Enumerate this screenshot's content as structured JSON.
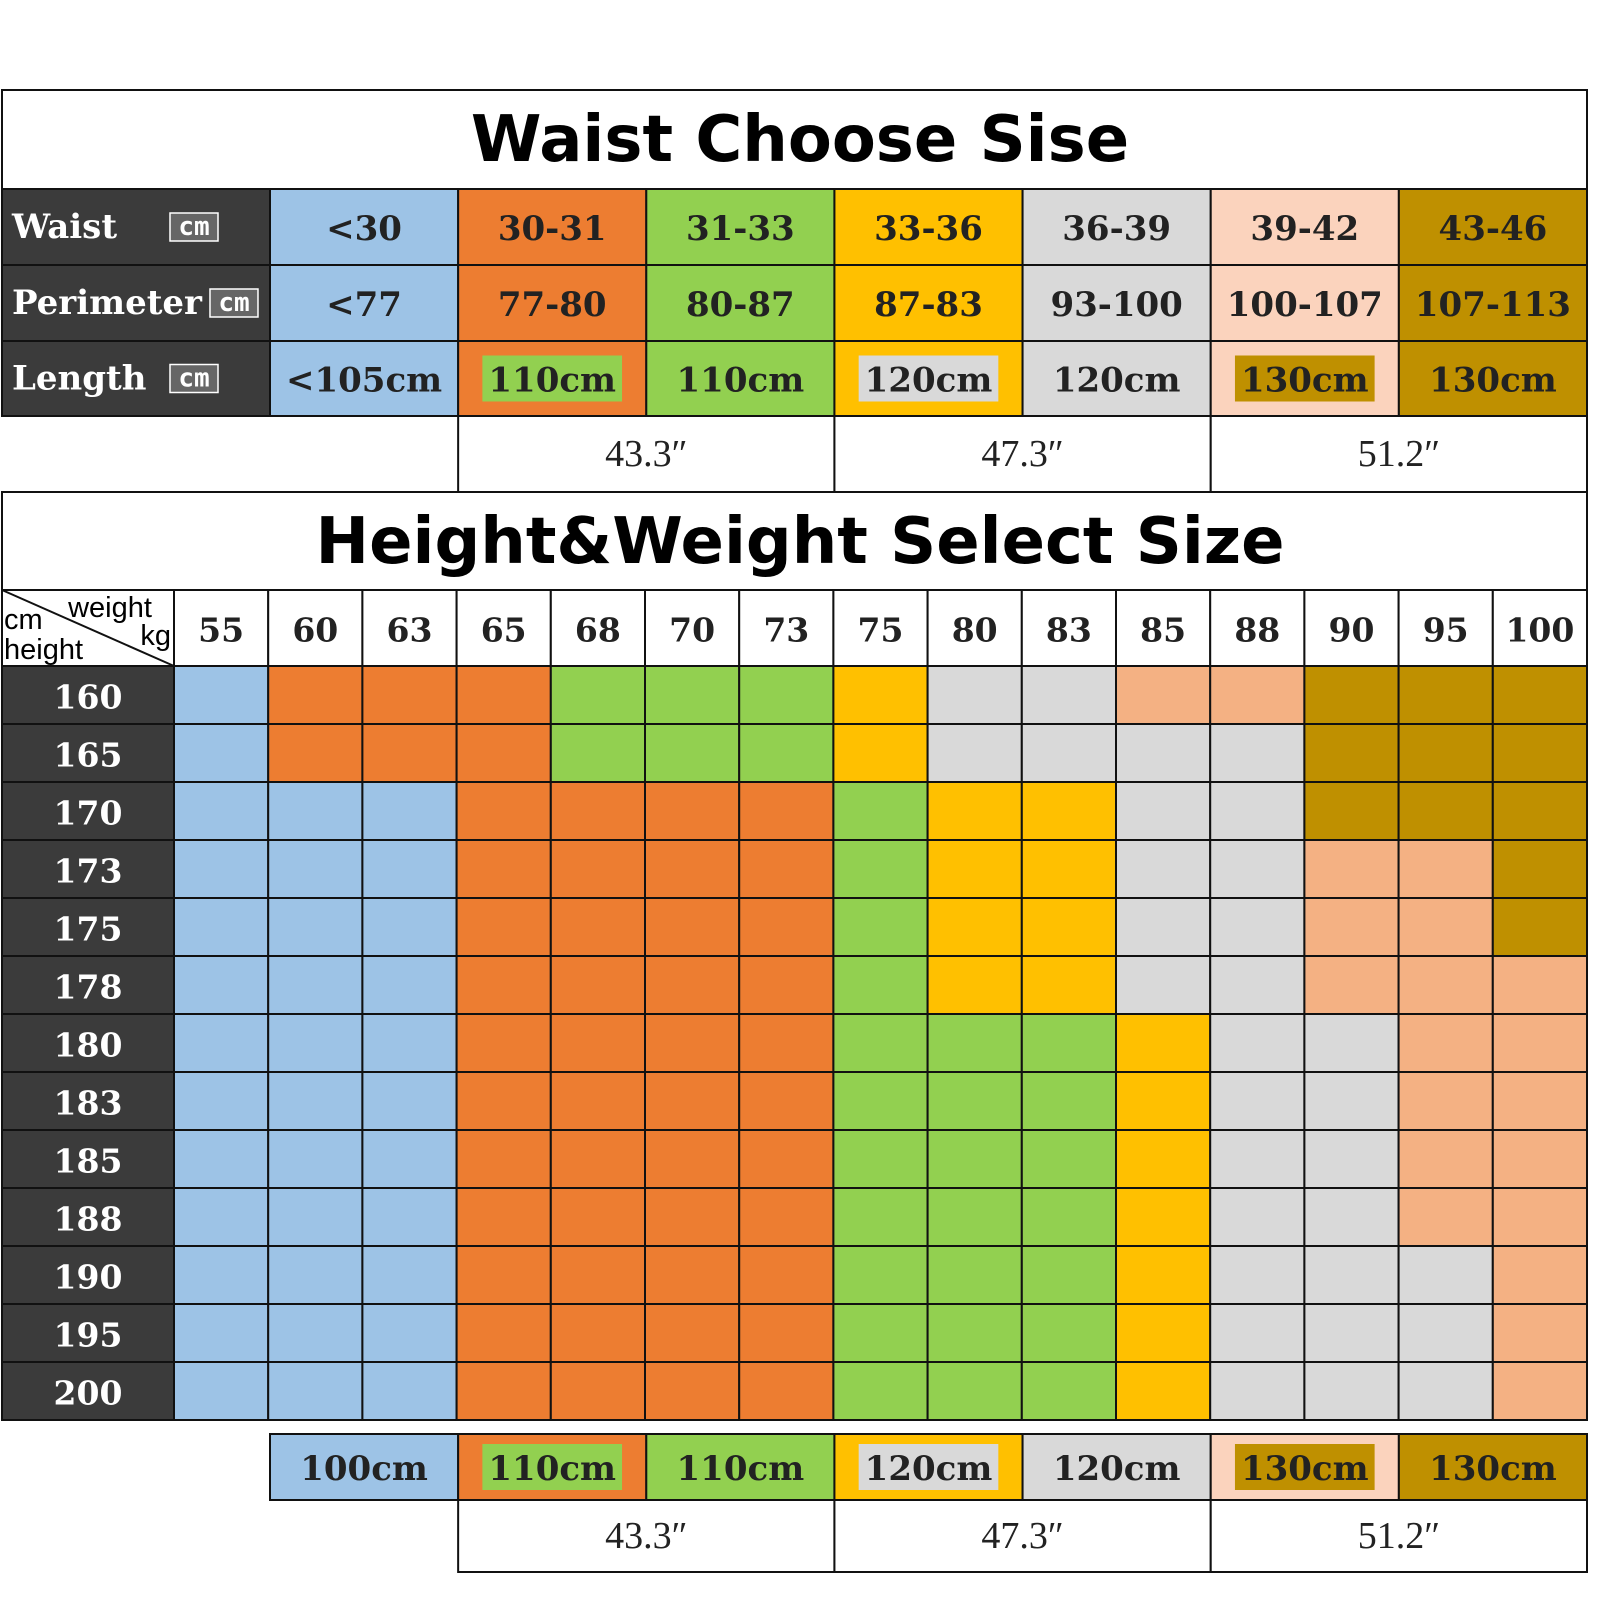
{
  "waist_table": {
    "title": "Waist Choose Sise",
    "column_colors": [
      "#9dc3e6",
      "#ed7d31",
      "#92d050",
      "#ffc000",
      "#d9d9d9",
      "#fbd3bd",
      "#bf9000"
    ],
    "rows": [
      {
        "label": "Waist",
        "unit": "cm",
        "cells": [
          "<30",
          "30-31",
          "31-33",
          "33-36",
          "36-39",
          "39-42",
          "43-46"
        ]
      },
      {
        "label": "Perimeter",
        "unit": "cm",
        "cells": [
          "<77",
          "77-80",
          "80-87",
          "87-83",
          "93-100",
          "100-107",
          "107-113"
        ]
      }
    ],
    "length_row": {
      "label": "Length",
      "unit": "cm",
      "cells": [
        {
          "text": "<105cm"
        },
        {
          "text": "110cm",
          "highlight": "#92d050"
        },
        {
          "text": "110cm"
        },
        {
          "text": "120cm",
          "highlight": "#d9d9d9"
        },
        {
          "text": "120cm"
        },
        {
          "text": "130cm",
          "highlight": "#bf9000"
        },
        {
          "text": "130cm"
        }
      ]
    },
    "inches": [
      "43.3″",
      "47.3″",
      "51.2″"
    ]
  },
  "size_grid": {
    "title": "Height&Weight Select Size",
    "corner": {
      "top_left": "cm",
      "top": "weight",
      "right": "kg",
      "bottom": "height"
    },
    "palette": [
      "#9dc3e6",
      "#ed7d31",
      "#92d050",
      "#ffc000",
      "#d9d9d9",
      "#f4b183",
      "#bf9000"
    ],
    "weights": [
      55,
      60,
      63,
      65,
      68,
      70,
      73,
      75,
      80,
      83,
      85,
      88,
      90,
      95,
      100
    ],
    "heights": [
      160,
      165,
      170,
      173,
      175,
      178,
      180,
      183,
      185,
      188,
      190,
      195,
      200
    ],
    "cells": [
      [
        0,
        1,
        1,
        1,
        2,
        2,
        2,
        3,
        4,
        4,
        5,
        5,
        6,
        6,
        6
      ],
      [
        0,
        1,
        1,
        1,
        2,
        2,
        2,
        3,
        4,
        4,
        4,
        4,
        6,
        6,
        6
      ],
      [
        0,
        0,
        0,
        1,
        1,
        1,
        1,
        2,
        3,
        3,
        4,
        4,
        6,
        6,
        6
      ],
      [
        0,
        0,
        0,
        1,
        1,
        1,
        1,
        2,
        3,
        3,
        4,
        4,
        5,
        5,
        6
      ],
      [
        0,
        0,
        0,
        1,
        1,
        1,
        1,
        2,
        3,
        3,
        4,
        4,
        5,
        5,
        6
      ],
      [
        0,
        0,
        0,
        1,
        1,
        1,
        1,
        2,
        3,
        3,
        4,
        4,
        5,
        5,
        5
      ],
      [
        0,
        0,
        0,
        1,
        1,
        1,
        1,
        2,
        2,
        2,
        3,
        4,
        4,
        5,
        5
      ],
      [
        0,
        0,
        0,
        1,
        1,
        1,
        1,
        2,
        2,
        2,
        3,
        4,
        4,
        5,
        5
      ],
      [
        0,
        0,
        0,
        1,
        1,
        1,
        1,
        2,
        2,
        2,
        3,
        4,
        4,
        5,
        5
      ],
      [
        0,
        0,
        0,
        1,
        1,
        1,
        1,
        2,
        2,
        2,
        3,
        4,
        4,
        5,
        5
      ],
      [
        0,
        0,
        0,
        1,
        1,
        1,
        1,
        2,
        2,
        2,
        3,
        4,
        4,
        4,
        5
      ],
      [
        0,
        0,
        0,
        1,
        1,
        1,
        1,
        2,
        2,
        2,
        3,
        4,
        4,
        4,
        5
      ],
      [
        0,
        0,
        0,
        1,
        1,
        1,
        1,
        2,
        2,
        2,
        3,
        4,
        4,
        4,
        5
      ]
    ],
    "length_row": [
      {
        "text": "100cm"
      },
      {
        "text": "110cm",
        "highlight": "#92d050"
      },
      {
        "text": "110cm"
      },
      {
        "text": "120cm",
        "highlight": "#d9d9d9"
      },
      {
        "text": "120cm"
      },
      {
        "text": "130cm",
        "highlight": "#bf9000"
      },
      {
        "text": "130cm"
      }
    ],
    "inches": [
      "43.3″",
      "47.3″",
      "51.2″"
    ]
  }
}
